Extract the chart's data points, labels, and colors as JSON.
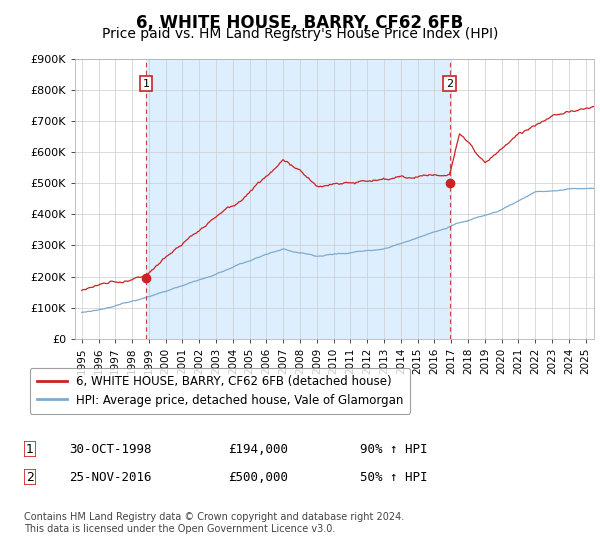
{
  "title": "6, WHITE HOUSE, BARRY, CF62 6FB",
  "subtitle": "Price paid vs. HM Land Registry's House Price Index (HPI)",
  "title_fontsize": 12,
  "subtitle_fontsize": 10,
  "xlim_start": 1994.6,
  "xlim_end": 2025.5,
  "ylim_min": 0,
  "ylim_max": 900000,
  "yticks": [
    0,
    100000,
    200000,
    300000,
    400000,
    500000,
    600000,
    700000,
    800000,
    900000
  ],
  "ytick_labels": [
    "£0",
    "£100K",
    "£200K",
    "£300K",
    "£400K",
    "£500K",
    "£600K",
    "£700K",
    "£800K",
    "£900K"
  ],
  "sale1_x": 1998.83,
  "sale1_y": 194000,
  "sale1_label": "1",
  "sale1_date": "30-OCT-1998",
  "sale1_price": "£194,000",
  "sale1_hpi": "90% ↑ HPI",
  "sale2_x": 2016.9,
  "sale2_y": 500000,
  "sale2_label": "2",
  "sale2_date": "25-NOV-2016",
  "sale2_price": "£500,000",
  "sale2_hpi": "50% ↑ HPI",
  "red_line_color": "#cc2222",
  "blue_line_color": "#7faacc",
  "dot_color_red": "#cc2222",
  "vline_color": "#cc2222",
  "grid_color": "#cccccc",
  "bg_color": "#ffffff",
  "shade_color": "#ddeeff",
  "legend_red_label": "6, WHITE HOUSE, BARRY, CF62 6FB (detached house)",
  "legend_blue_label": "HPI: Average price, detached house, Vale of Glamorgan",
  "footer": "Contains HM Land Registry data © Crown copyright and database right 2024.\nThis data is licensed under the Open Government Licence v3.0."
}
